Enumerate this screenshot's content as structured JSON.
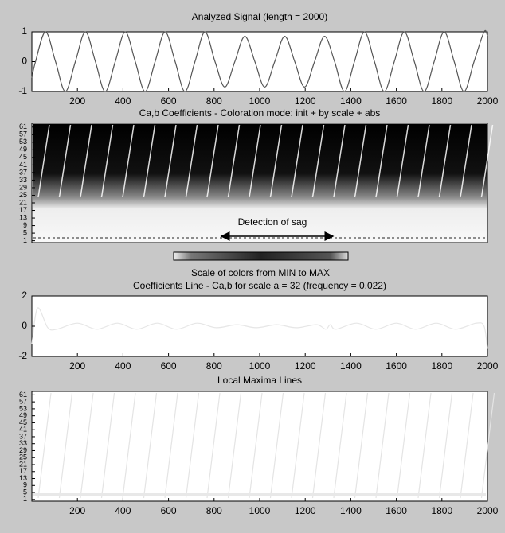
{
  "chart_data": [
    {
      "type": "line",
      "title": "Analyzed Signal (length = 2000)",
      "xlim": [
        0,
        2000
      ],
      "xticks": [
        200,
        400,
        600,
        800,
        1000,
        1200,
        1400,
        1600,
        1800,
        2000
      ],
      "ylim": [
        -1,
        1
      ],
      "yticks": [
        -1,
        0,
        1
      ],
      "series": [
        {
          "color": "#555555",
          "x": [
            0,
            16,
            60,
            104,
            147,
            191,
            235,
            279,
            322,
            366,
            410,
            454,
            497,
            541,
            585,
            629,
            672,
            716,
            760,
            804,
            847,
            891,
            935,
            979,
            1022,
            1066,
            1110,
            1154,
            1197,
            1241,
            1285,
            1329,
            1372,
            1416,
            1460,
            1504,
            1547,
            1591,
            1635,
            1679,
            1722,
            1766,
            1810,
            1854,
            1897,
            1941,
            1985,
            2000
          ],
          "values": [
            -0.54,
            0,
            1,
            0,
            -1,
            0,
            1,
            0,
            -1,
            0,
            1,
            0,
            -1,
            0,
            1,
            0,
            -1,
            0,
            1,
            0,
            -0.85,
            0,
            0.85,
            0,
            -0.85,
            0,
            0.85,
            0,
            -0.85,
            0,
            0.85,
            0,
            -1,
            0,
            1,
            0,
            -1,
            0,
            1,
            0,
            -1,
            0,
            1,
            0,
            -1,
            0,
            1,
            0.86
          ]
        }
      ]
    },
    {
      "type": "heatmap",
      "title": "Ca,b Coefficients - Coloration mode: init + by scale + abs",
      "ylim": [
        0,
        63
      ],
      "yticks": [
        1,
        5,
        9,
        13,
        17,
        21,
        25,
        29,
        33,
        37,
        41,
        45,
        49,
        53,
        57,
        61
      ],
      "annotation": "Detection of sag",
      "colorbar_label": "Scale of colors from MIN to MAX"
    },
    {
      "type": "line",
      "title": "Coefficients Line - Ca,b for scale a = 32  (frequency =   0.022)",
      "xlim": [
        0,
        2000
      ],
      "xticks": [
        200,
        400,
        600,
        800,
        1000,
        1200,
        1400,
        1600,
        1800,
        2000
      ],
      "ylim": [
        -2,
        2
      ],
      "yticks": [
        -2,
        0,
        2
      ],
      "series": [
        {
          "color": "#e6e6e6",
          "x": [
            0,
            25,
            70,
            110,
            200,
            285,
            375,
            460,
            550,
            635,
            725,
            810,
            900,
            985,
            1075,
            1160,
            1250,
            1290,
            1310,
            1335,
            1425,
            1510,
            1600,
            1685,
            1775,
            1860,
            1950,
            1985,
            2000
          ],
          "values": [
            -1.2,
            1.2,
            -0.1,
            -0.2,
            0.2,
            -0.2,
            0.2,
            -0.2,
            0.2,
            -0.2,
            0.2,
            -0.1,
            0.1,
            -0.1,
            0.1,
            -0.1,
            0.1,
            -0.2,
            0.1,
            -0.2,
            0.2,
            -0.2,
            0.2,
            -0.2,
            0.2,
            -0.2,
            0.2,
            0,
            -1.5
          ]
        }
      ]
    },
    {
      "type": "maxima",
      "title": "Local Maxima Lines",
      "xlim": [
        0,
        2000
      ],
      "xticks": [
        200,
        400,
        600,
        800,
        1000,
        1200,
        1400,
        1600,
        1800,
        2000
      ],
      "ylim": [
        0,
        63
      ],
      "yticks": [
        1,
        5,
        9,
        13,
        17,
        21,
        25,
        29,
        33,
        37,
        41,
        45,
        49,
        53,
        57,
        61
      ]
    }
  ]
}
